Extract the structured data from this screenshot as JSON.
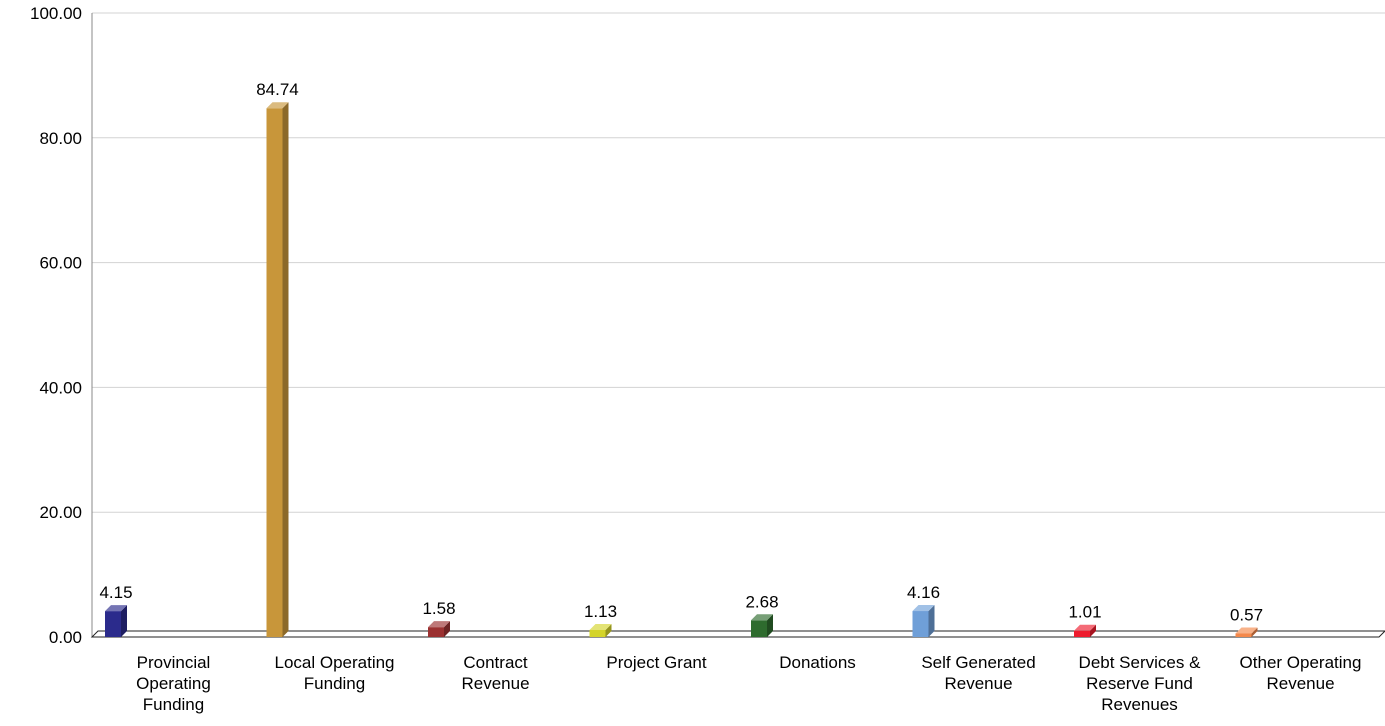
{
  "chart_data": {
    "type": "bar",
    "title": "",
    "xlabel": "",
    "ylabel": "",
    "ylim": [
      0,
      100
    ],
    "yticks": [
      "0.00",
      "20.00",
      "40.00",
      "60.00",
      "80.00",
      "100.00"
    ],
    "grid": true,
    "categories": [
      [
        "Provincial",
        "Operating",
        "Funding"
      ],
      [
        "Local Operating",
        "Funding"
      ],
      [
        "Contract",
        "Revenue"
      ],
      [
        "Project Grant"
      ],
      [
        "Donations"
      ],
      [
        "Self Generated",
        "Revenue"
      ],
      [
        "Debt Services &",
        "Reserve Fund",
        "Revenues"
      ],
      [
        "Other Operating",
        "Revenue"
      ]
    ],
    "values": [
      4.15,
      84.74,
      1.58,
      1.13,
      2.68,
      4.16,
      1.01,
      0.57
    ],
    "value_labels": [
      "4.15",
      "84.74",
      "1.58",
      "1.13",
      "2.68",
      "4.16",
      "1.01",
      "0.57"
    ],
    "colors": [
      "#2b2b8c",
      "#c8963a",
      "#9b3030",
      "#d4d42a",
      "#2e6b2e",
      "#6f9fd8",
      "#ee1c2e",
      "#f4884a"
    ]
  }
}
